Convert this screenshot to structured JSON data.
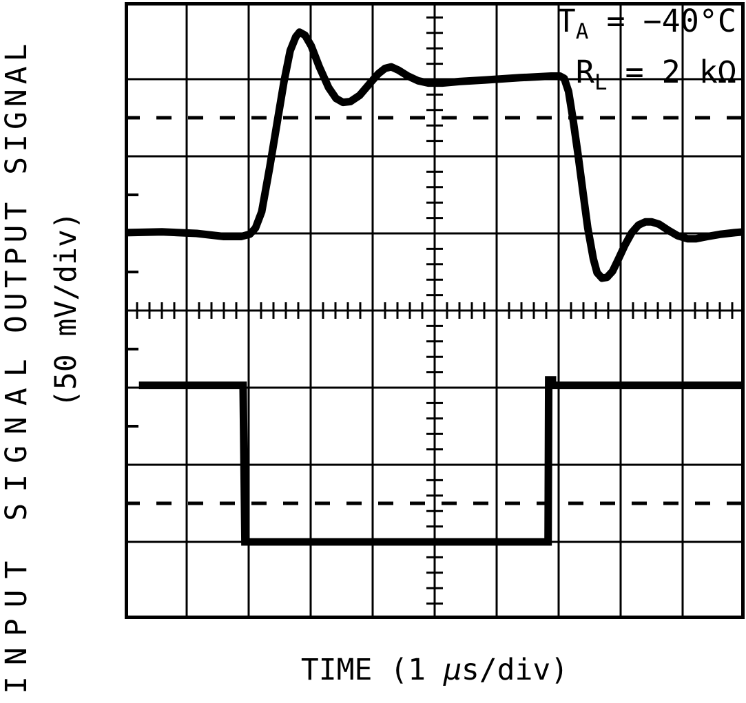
{
  "figure": {
    "bg": "#ffffff",
    "fg": "#000000"
  },
  "labels": {
    "y_top": "OUTPUT SIGNAL",
    "y_bottom": "INPUT SIGNAL",
    "y_units": "(50 mV/div)",
    "x_pre": "TIME (1 ",
    "x_mu": "μ",
    "x_post": "s/div)"
  },
  "annotations": [
    {
      "sym": "T",
      "sub": "A",
      "eq": "=",
      "val": "−40°C"
    },
    {
      "sym": "R",
      "sub": "L",
      "eq": "=",
      "val": "2 kΩ"
    }
  ],
  "chart_data": {
    "type": "line",
    "title": "Small-signal step response (oscilloscope graticule)",
    "xlabel": "TIME (1 μs/div)",
    "ylabel": "OUTPUT SIGNAL / INPUT SIGNAL (50 mV/div)",
    "x_divisions": 10,
    "y_divisions": 8,
    "x_per_div": "1 μs",
    "y_per_div": "50 mV",
    "grid": "on",
    "dashed_gridlines_y_div": [
      1.5,
      6.5
    ],
    "center_tick_step_div": 0.2,
    "left_edge_tick_y_div": [
      2.5,
      3.5,
      4.5,
      5.5
    ],
    "series": [
      {
        "name": "output-signal",
        "points_div": [
          [
            0.02,
            2.99
          ],
          [
            0.6,
            2.98
          ],
          [
            1.16,
            3.0
          ],
          [
            1.6,
            3.04
          ],
          [
            1.88,
            3.04
          ],
          [
            2.02,
            3.01
          ],
          [
            2.11,
            2.93
          ],
          [
            2.21,
            2.72
          ],
          [
            2.34,
            2.14
          ],
          [
            2.46,
            1.56
          ],
          [
            2.57,
            1.03
          ],
          [
            2.67,
            0.63
          ],
          [
            2.76,
            0.45
          ],
          [
            2.82,
            0.39
          ],
          [
            2.91,
            0.43
          ],
          [
            3.01,
            0.57
          ],
          [
            3.14,
            0.84
          ],
          [
            3.29,
            1.11
          ],
          [
            3.41,
            1.25
          ],
          [
            3.52,
            1.3
          ],
          [
            3.64,
            1.29
          ],
          [
            3.79,
            1.21
          ],
          [
            3.96,
            1.05
          ],
          [
            4.09,
            0.93
          ],
          [
            4.2,
            0.86
          ],
          [
            4.3,
            0.84
          ],
          [
            4.41,
            0.88
          ],
          [
            4.57,
            0.96
          ],
          [
            4.73,
            1.02
          ],
          [
            4.9,
            1.05
          ],
          [
            5.12,
            1.05
          ],
          [
            5.4,
            1.03
          ],
          [
            5.82,
            1.01
          ],
          [
            6.38,
            0.98
          ],
          [
            6.88,
            0.96
          ],
          [
            7.02,
            0.96
          ],
          [
            7.09,
            0.99
          ],
          [
            7.16,
            1.16
          ],
          [
            7.23,
            1.51
          ],
          [
            7.31,
            1.96
          ],
          [
            7.39,
            2.45
          ],
          [
            7.47,
            2.93
          ],
          [
            7.56,
            3.33
          ],
          [
            7.62,
            3.51
          ],
          [
            7.7,
            3.58
          ],
          [
            7.78,
            3.57
          ],
          [
            7.87,
            3.49
          ],
          [
            7.96,
            3.34
          ],
          [
            8.07,
            3.15
          ],
          [
            8.18,
            2.99
          ],
          [
            8.29,
            2.89
          ],
          [
            8.4,
            2.85
          ],
          [
            8.5,
            2.85
          ],
          [
            8.62,
            2.88
          ],
          [
            8.77,
            2.96
          ],
          [
            8.92,
            3.03
          ],
          [
            9.08,
            3.07
          ],
          [
            9.21,
            3.07
          ],
          [
            9.4,
            3.04
          ],
          [
            9.62,
            3.01
          ],
          [
            9.84,
            2.99
          ],
          [
            9.98,
            2.98
          ]
        ]
      },
      {
        "name": "input-signal",
        "points_div": [
          [
            0.23,
            4.97
          ],
          [
            1.91,
            4.97
          ],
          [
            1.94,
            7.0
          ],
          [
            6.83,
            7.0
          ],
          [
            6.84,
            4.9
          ],
          [
            6.9,
            4.9
          ],
          [
            6.9,
            4.97
          ],
          [
            9.98,
            4.97
          ]
        ]
      }
    ]
  }
}
